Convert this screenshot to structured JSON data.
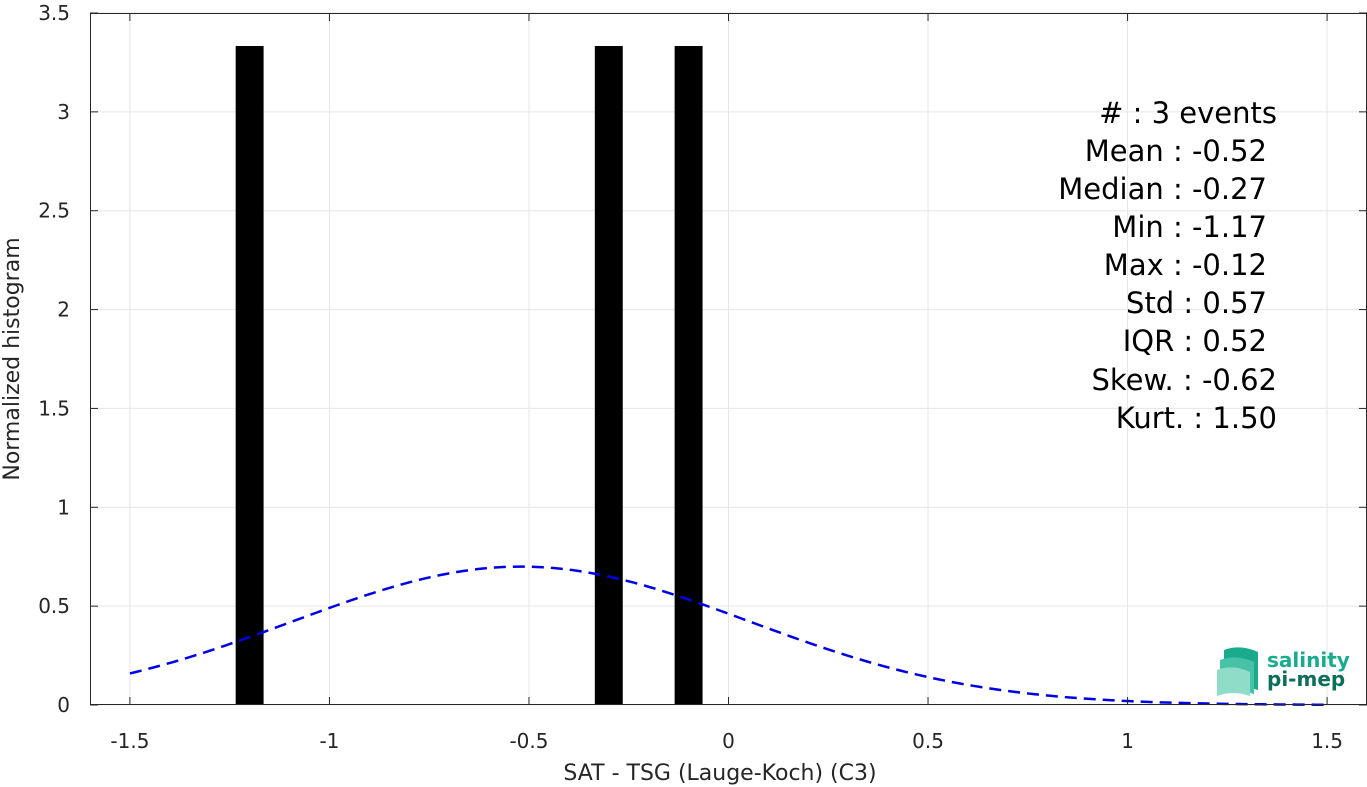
{
  "chart_data": {
    "type": "bar",
    "xlabel": "SAT - TSG (Lauge-Koch) (C3)",
    "ylabel": "Normalized histogram",
    "xlim": [
      -1.6,
      1.6
    ],
    "ylim": [
      0,
      3.5
    ],
    "xticks": [
      -1.5,
      -1,
      -0.5,
      0,
      0.5,
      1,
      1.5
    ],
    "xtick_labels": [
      "-1.5",
      "-1",
      "-0.5",
      "0",
      "0.5",
      "1",
      "1.5"
    ],
    "yticks": [
      0,
      0.5,
      1,
      1.5,
      2,
      2.5,
      3,
      3.5
    ],
    "ytick_labels": [
      "0",
      "0.5",
      "1",
      "1.5",
      "2",
      "2.5",
      "3",
      "3.5"
    ],
    "grid": true,
    "bars": [
      {
        "x": -1.2,
        "width": 0.07,
        "value": 3.333
      },
      {
        "x": -0.3,
        "width": 0.07,
        "value": 3.333
      },
      {
        "x": -0.1,
        "width": 0.07,
        "value": 3.333
      }
    ],
    "fit_curve": {
      "style": "dashed",
      "color": "#0000e6",
      "mean": -0.52,
      "std": 0.57,
      "x_range": [
        -1.5,
        1.5
      ]
    },
    "colors": {
      "bars": "#000000",
      "grid": "#e6e6e6",
      "axes": "#262626"
    }
  },
  "stats": [
    "#  : 3 events",
    "Mean : -0.52",
    "Median : -0.27",
    "Min : -1.17",
    "Max : -0.12",
    "Std : 0.57",
    "IQR : 0.52",
    "Skew. : -0.62",
    "Kurt. : 1.50"
  ],
  "logo": {
    "line1": "salinity",
    "line2": "pi-mep",
    "color1": "#1aab8c",
    "color2": "#0e6e5c"
  }
}
